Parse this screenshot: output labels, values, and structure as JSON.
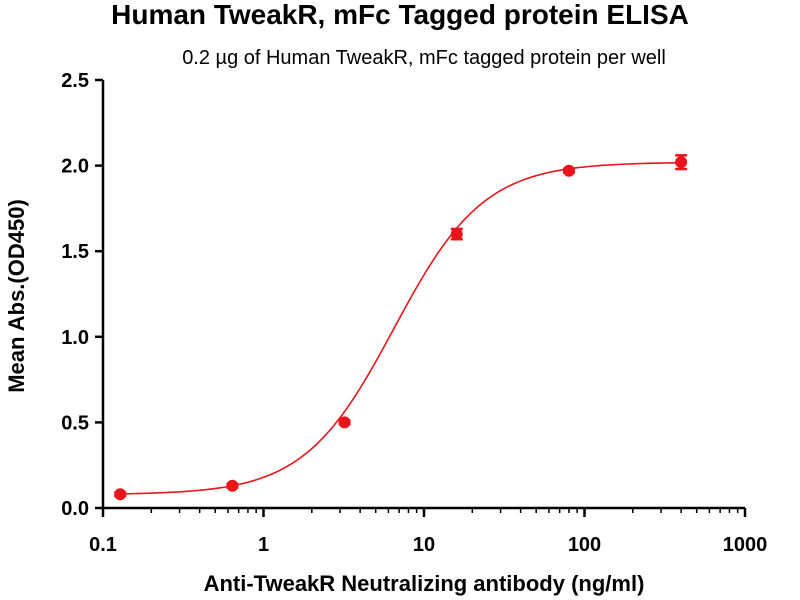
{
  "chart_data": {
    "type": "scatter",
    "title": "Human TweakR,  mFc Tagged protein ELISA",
    "subtitle": "0.2 µg of Human TweakR, mFc tagged protein per well",
    "xlabel": "Anti-TweakR Neutralizing antibody (ng/ml)",
    "ylabel": "Mean Abs.(OD450)",
    "x_scale": "log",
    "xlim": [
      0.1,
      1000
    ],
    "ylim": [
      0,
      2.5
    ],
    "x_ticks": [
      0.1,
      1,
      10,
      100,
      1000
    ],
    "x_tick_labels": [
      "0.1",
      "1",
      "10",
      "100",
      "1000"
    ],
    "y_ticks": [
      0,
      0.5,
      1.0,
      1.5,
      2.0,
      2.5
    ],
    "y_tick_labels": [
      "0.0",
      "0.5",
      "1.0",
      "1.5",
      "2.0",
      "2.5"
    ],
    "grid": false,
    "series": [
      {
        "x": [
          0.128,
          0.64,
          3.2,
          16,
          80,
          400
        ],
        "y": [
          0.08,
          0.13,
          0.5,
          1.6,
          1.97,
          2.02
        ],
        "error": [
          0.01,
          0.01,
          0.01,
          0.03,
          0.01,
          0.04
        ],
        "color": "#e8151b",
        "fit": "4PL",
        "fit_params": {
          "bottom": 0.078,
          "top": 2.02,
          "ec50": 6.5,
          "hill": 1.55
        }
      }
    ]
  }
}
